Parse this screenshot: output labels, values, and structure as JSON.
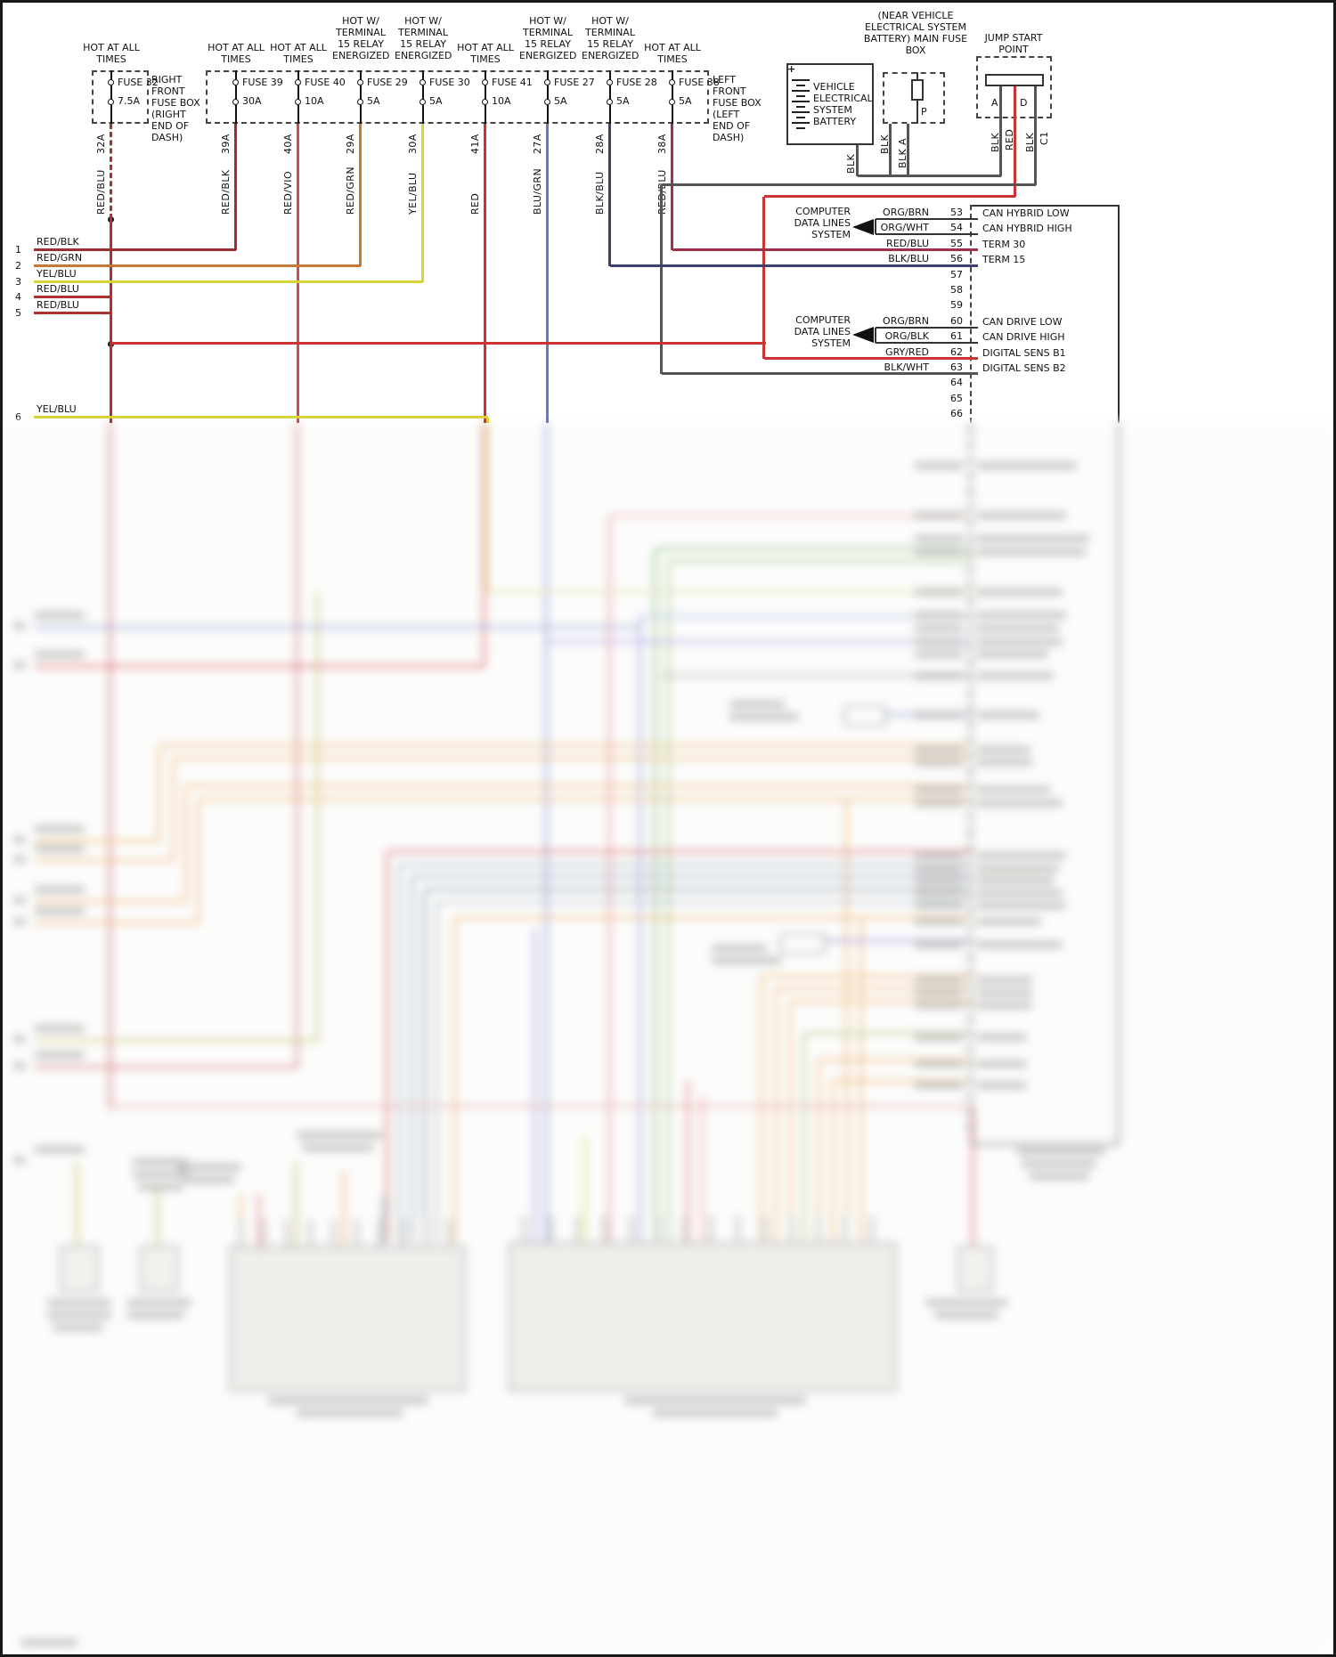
{
  "fuses": [
    {
      "power": "HOT AT ALL TIMES",
      "name": "FUSE 32",
      "amp": "7.5A",
      "circuit": "32A",
      "wire": "RED/BLU"
    },
    {
      "power": "HOT AT ALL TIMES",
      "name": "FUSE 39",
      "amp": "30A",
      "circuit": "39A",
      "wire": "RED/BLK"
    },
    {
      "power": "HOT AT ALL TIMES",
      "name": "FUSE 40",
      "amp": "10A",
      "circuit": "40A",
      "wire": "RED/VIO"
    },
    {
      "power": "HOT W/ TERMINAL 15 RELAY ENERGIZED",
      "name": "FUSE 29",
      "amp": "5A",
      "circuit": "29A",
      "wire": "RED/GRN"
    },
    {
      "power": "HOT W/ TERMINAL 15 RELAY ENERGIZED",
      "name": "FUSE 30",
      "amp": "5A",
      "circuit": "30A",
      "wire": "YEL/BLU"
    },
    {
      "power": "HOT AT ALL TIMES",
      "name": "FUSE 41",
      "amp": "10A",
      "circuit": "41A",
      "wire": "RED"
    },
    {
      "power": "HOT W/ TERMINAL 15 RELAY ENERGIZED",
      "name": "FUSE 27",
      "amp": "5A",
      "circuit": "27A",
      "wire": "BLU/GRN"
    },
    {
      "power": "HOT W/ TERMINAL 15 RELAY ENERGIZED",
      "name": "FUSE 28",
      "amp": "5A",
      "circuit": "28A",
      "wire": "BLK/BLU"
    },
    {
      "power": "HOT AT ALL TIMES",
      "name": "FUSE 38",
      "amp": "5A",
      "circuit": "38A",
      "wire": "RED/BLU"
    }
  ],
  "fuse_boxes": {
    "right_front": "RIGHT FRONT FUSE BOX (RIGHT END OF DASH)",
    "left_front": "LEFT FRONT FUSE BOX (LEFT END OF DASH)"
  },
  "left_rows": [
    {
      "num": "1",
      "label": "RED/BLK"
    },
    {
      "num": "2",
      "label": "RED/GRN"
    },
    {
      "num": "3",
      "label": "YEL/BLU"
    },
    {
      "num": "4",
      "label": "RED/BLU"
    },
    {
      "num": "5",
      "label": "RED/BLU"
    },
    {
      "num": "6",
      "label": "YEL/BLU"
    }
  ],
  "power_area": {
    "note": "(NEAR VEHICLE ELECTRICAL SYSTEM BATTERY) MAIN FUSE BOX",
    "battery": "VEHICLE ELECTRICAL SYSTEM BATTERY",
    "battery_plus": "+",
    "battery_wire": "BLK",
    "fusebox_pin": "P",
    "fusebox_wire1": "BLK",
    "fusebox_wire2": "BLK A",
    "jump_start": "JUMP START POINT",
    "jump_pin_a": "A",
    "jump_pin_d": "D",
    "jump_wire1": "BLK",
    "jump_wire2": "RED",
    "jump_wire3": "BLK",
    "connector_c1": "C1"
  },
  "computer_label": "COMPUTER DATA LINES SYSTEM",
  "connector": {
    "pins": [
      {
        "pin": "53",
        "wire": "ORG/BRN",
        "signal": "CAN HYBRID LOW"
      },
      {
        "pin": "54",
        "wire": "ORG/WHT",
        "signal": "CAN HYBRID HIGH"
      },
      {
        "pin": "55",
        "wire": "RED/BLU",
        "signal": "TERM 30"
      },
      {
        "pin": "56",
        "wire": "BLK/BLU",
        "signal": "TERM 15"
      },
      {
        "pin": "57"
      },
      {
        "pin": "58"
      },
      {
        "pin": "59"
      },
      {
        "pin": "60",
        "wire": "ORG/BRN",
        "signal": "CAN DRIVE LOW"
      },
      {
        "pin": "61",
        "wire": "ORG/BLK",
        "signal": "CAN DRIVE HIGH"
      },
      {
        "pin": "62",
        "wire": "GRY/RED",
        "signal": "DIGITAL SENS B1"
      },
      {
        "pin": "63",
        "wire": "BLK/WHT",
        "signal": "DIGITAL SENS B2"
      },
      {
        "pin": "64"
      },
      {
        "pin": "65"
      },
      {
        "pin": "66"
      }
    ]
  },
  "colors": {
    "red_blu": "#b03030",
    "red_blk": "#9c2f2f",
    "red_vio": "#c85050",
    "red_grn": "#c87830",
    "yel_blu": "#d8d23c",
    "red": "#d03030",
    "blu_grn": "#6677cc",
    "blk_blu": "#3a4070",
    "red_blu_38": "#a03048",
    "black_wire": "#555555",
    "bright_red": "#cc3333"
  }
}
